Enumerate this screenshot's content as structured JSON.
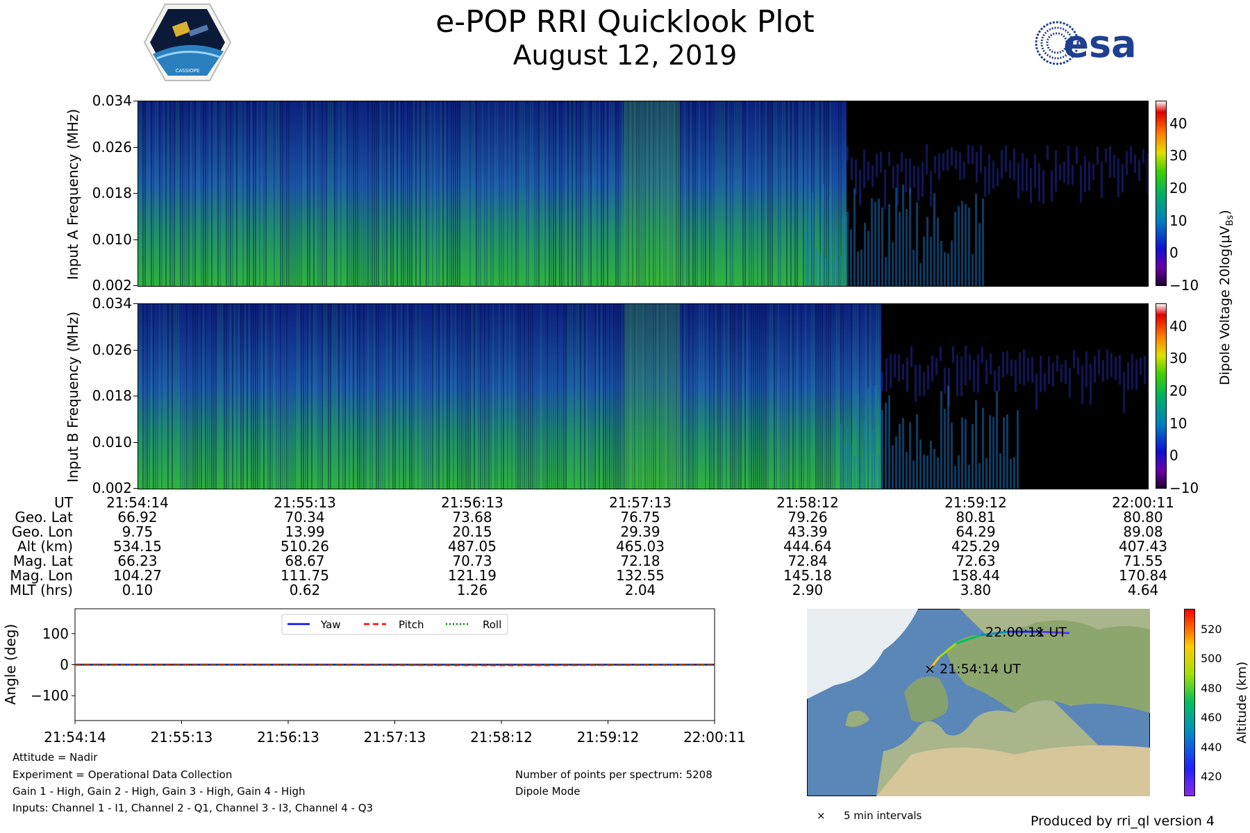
{
  "header": {
    "title": "e-POP RRI Quicklook Plot",
    "date": "August 12, 2019",
    "cassiope_logo_text": "CASSIOPE",
    "esa_logo_text": "esa"
  },
  "chart_data": [
    {
      "type": "heatmap",
      "name": "input-a-spectrogram",
      "ylabel": "Input A Frequency (MHz)",
      "yticks": [
        "0.034",
        "0.026",
        "0.018",
        "0.010",
        "0.002"
      ],
      "ylim": [
        0.002,
        0.034
      ],
      "colorbar_ticks": [
        "40",
        "30",
        "20",
        "10",
        "0",
        "−10"
      ],
      "colorbar_range": [
        -10,
        47
      ]
    },
    {
      "type": "heatmap",
      "name": "input-b-spectrogram",
      "ylabel": "Input B Frequency (MHz)",
      "yticks": [
        "0.034",
        "0.026",
        "0.018",
        "0.010",
        "0.002"
      ],
      "ylim": [
        0.002,
        0.034
      ],
      "colorbar_ticks": [
        "40",
        "30",
        "20",
        "10",
        "0",
        "−10"
      ],
      "colorbar_range": [
        -10,
        47
      ]
    },
    {
      "type": "line",
      "name": "attitude",
      "ylabel": "Angle (deg)",
      "yticks": [
        "100",
        "0",
        "−100"
      ],
      "ylim": [
        -180,
        180
      ],
      "xticks": [
        "21:54:14",
        "21:55:13",
        "21:56:13",
        "21:57:13",
        "21:58:12",
        "21:59:12",
        "22:00:11"
      ],
      "series": [
        {
          "name": "Yaw",
          "color": "#0000ff",
          "values": [
            0,
            0,
            0,
            0,
            0,
            0,
            0
          ]
        },
        {
          "name": "Pitch",
          "color": "#ff0000",
          "values": [
            0,
            0,
            0,
            -1,
            -2,
            -1,
            0
          ]
        },
        {
          "name": "Roll",
          "color": "#008000",
          "values": [
            0,
            0,
            0,
            0,
            0,
            0,
            0
          ]
        }
      ]
    },
    {
      "type": "scatter",
      "name": "ground-track-map",
      "colorbar_label": "Altitude (km)",
      "colorbar_ticks": [
        "520",
        "500",
        "480",
        "460",
        "440",
        "420"
      ],
      "colorbar_range": [
        407,
        534
      ],
      "start_label": "21:54:14 UT",
      "end_label": "22:00:11 UT"
    }
  ],
  "colorbar_label": "Dipole Voltage 20log(μV",
  "colorbar_label_sub": "Bs",
  "colorbar_label_close": ")",
  "colors": {
    "spectrogram_low": "#00004a",
    "spectrogram_mid": "#1d5fb0",
    "spectrogram_high": "#22b34a",
    "track_high": "#ffcc00",
    "track_low": "#8833ff"
  },
  "ephemeris": {
    "labels": [
      "UT",
      "Geo. Lat",
      "Geo. Lon",
      "Alt (km)",
      "Mag. Lat",
      "Mag. Lon",
      "MLT (hrs)"
    ],
    "columns": [
      [
        "21:54:14",
        "66.92",
        "9.75",
        "534.15",
        "66.23",
        "104.27",
        "0.10"
      ],
      [
        "21:55:13",
        "70.34",
        "13.99",
        "510.26",
        "68.67",
        "111.75",
        "0.62"
      ],
      [
        "21:56:13",
        "73.68",
        "20.15",
        "487.05",
        "70.73",
        "121.19",
        "1.26"
      ],
      [
        "21:57:13",
        "76.75",
        "29.39",
        "465.03",
        "72.18",
        "132.55",
        "2.04"
      ],
      [
        "21:58:12",
        "79.26",
        "43.39",
        "444.64",
        "72.84",
        "145.18",
        "2.90"
      ],
      [
        "21:59:12",
        "80.81",
        "64.29",
        "425.29",
        "72.63",
        "158.44",
        "3.80"
      ],
      [
        "22:00:11",
        "80.80",
        "89.08",
        "407.43",
        "71.55",
        "170.84",
        "4.64"
      ]
    ]
  },
  "legend": {
    "yaw": "Yaw",
    "pitch": "Pitch",
    "roll": "Roll"
  },
  "notes": {
    "attitude": "Attitude = Nadir",
    "experiment": "Experiment = Operational Data Collection",
    "gain": "Gain 1 - High, Gain 2 - High, Gain 3 - High, Gain 4 - High",
    "inputs": "Inputs: Channel 1 - I1, Channel 2 - Q1, Channel 3 - I3, Channel 4 - Q3",
    "points": "Number of points per spectrum: 5208",
    "mode": "Dipole Mode",
    "interval": "5 min intervals",
    "interval_marker": "×",
    "produced": "Produced by rri_ql version 4"
  }
}
